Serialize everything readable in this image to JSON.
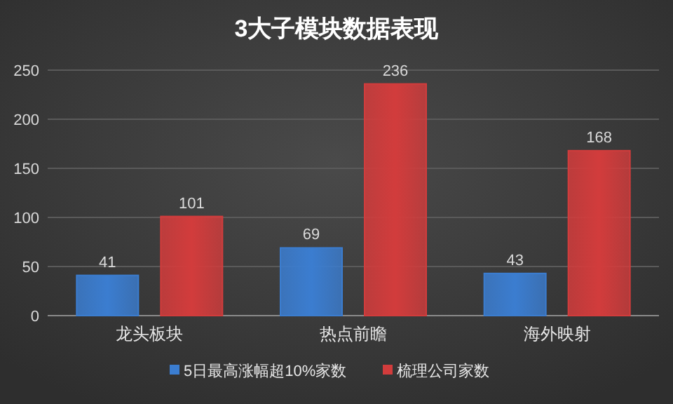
{
  "chart_data": {
    "type": "bar",
    "title": "3大子模块数据表现",
    "categories": [
      "龙头板块",
      "热点前瞻",
      "海外映射"
    ],
    "series": [
      {
        "name": "5日最高涨幅超10%家数",
        "color": "#3b7dd0",
        "values": [
          41,
          69,
          43
        ]
      },
      {
        "name": "梳理公司家数",
        "color": "#d23c3c",
        "values": [
          101,
          236,
          168
        ]
      }
    ],
    "ylim": [
      0,
      250
    ],
    "yticks": [
      0,
      50,
      100,
      150,
      200,
      250
    ],
    "grid": "y",
    "legend": "bottom",
    "data_labels": true
  }
}
